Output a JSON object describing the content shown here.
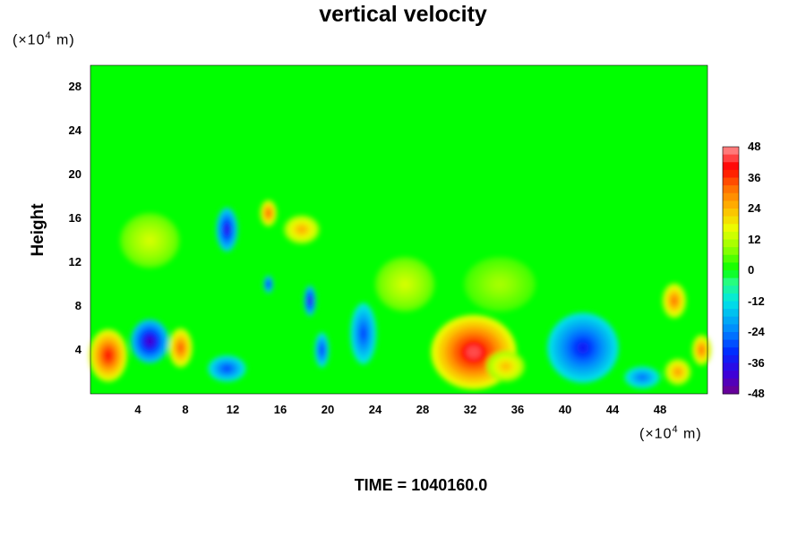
{
  "chart_data": {
    "type": "heatmap",
    "title": "vertical velocity",
    "ylabel": "Height",
    "y_unit": {
      "prefix": "(×10",
      "exp": "4",
      "suffix": " m)"
    },
    "x_unit": {
      "prefix": "(×10",
      "exp": "4",
      "suffix": " m)"
    },
    "xlim": [
      0,
      52
    ],
    "ylim": [
      0,
      30
    ],
    "x_ticks": [
      4,
      8,
      12,
      16,
      20,
      24,
      28,
      32,
      36,
      40,
      44,
      48
    ],
    "y_ticks": [
      4,
      8,
      12,
      16,
      20,
      24,
      28
    ],
    "colorbar": {
      "range": [
        -48,
        48
      ],
      "ticks": [
        48,
        36,
        24,
        12,
        0,
        -12,
        -24,
        -36,
        -48
      ],
      "levels": 32
    },
    "features": [
      {
        "x": 1.5,
        "y": 3.5,
        "value": 40,
        "rx": 1.6,
        "ry": 2.4
      },
      {
        "x": 5.0,
        "y": 4.8,
        "value": -42,
        "rx": 1.6,
        "ry": 2.0
      },
      {
        "x": 7.6,
        "y": 4.2,
        "value": 34,
        "rx": 1.0,
        "ry": 1.8
      },
      {
        "x": 11.5,
        "y": 2.3,
        "value": -30,
        "rx": 1.6,
        "ry": 1.2
      },
      {
        "x": 11.5,
        "y": 15.0,
        "value": -38,
        "rx": 0.9,
        "ry": 2.0
      },
      {
        "x": 15.0,
        "y": 16.5,
        "value": 34,
        "rx": 0.7,
        "ry": 1.2
      },
      {
        "x": 17.8,
        "y": 15.0,
        "value": 26,
        "rx": 1.5,
        "ry": 1.3
      },
      {
        "x": 15.0,
        "y": 10.0,
        "value": -36,
        "rx": 0.4,
        "ry": 0.8
      },
      {
        "x": 18.5,
        "y": 8.5,
        "value": -40,
        "rx": 0.5,
        "ry": 1.4
      },
      {
        "x": 19.5,
        "y": 4.0,
        "value": -32,
        "rx": 0.6,
        "ry": 1.6
      },
      {
        "x": 23.0,
        "y": 5.5,
        "value": -30,
        "rx": 1.1,
        "ry": 2.8
      },
      {
        "x": 32.3,
        "y": 3.8,
        "value": 44,
        "rx": 3.6,
        "ry": 3.4
      },
      {
        "x": 35.0,
        "y": 2.5,
        "value": 24,
        "rx": 1.6,
        "ry": 1.4
      },
      {
        "x": 41.5,
        "y": 4.2,
        "value": -34,
        "rx": 3.0,
        "ry": 3.2
      },
      {
        "x": 46.5,
        "y": 1.5,
        "value": -26,
        "rx": 1.5,
        "ry": 1.0
      },
      {
        "x": 49.2,
        "y": 8.5,
        "value": 32,
        "rx": 1.0,
        "ry": 1.6
      },
      {
        "x": 49.5,
        "y": 2.0,
        "value": 28,
        "rx": 1.1,
        "ry": 1.2
      },
      {
        "x": 51.5,
        "y": 4.0,
        "value": 32,
        "rx": 0.8,
        "ry": 1.4
      },
      {
        "x": 26.5,
        "y": 10.0,
        "value": 14,
        "rx": 2.5,
        "ry": 2.5
      },
      {
        "x": 34.5,
        "y": 10.0,
        "value": 10,
        "rx": 3.0,
        "ry": 2.5
      },
      {
        "x": 5.0,
        "y": 14.0,
        "value": 14,
        "rx": 2.5,
        "ry": 2.5
      }
    ]
  },
  "footer": {
    "time_label": "TIME = 1040160.0"
  }
}
